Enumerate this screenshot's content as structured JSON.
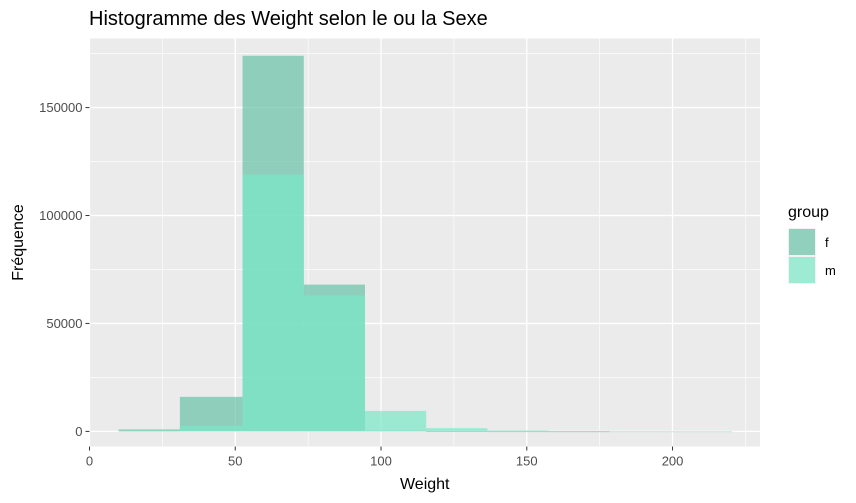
{
  "chart_data": {
    "type": "bar",
    "subtype": "histogram-overlay",
    "title": "Histogramme des  Weight selon le ou la  Sexe",
    "xlabel": "Weight",
    "ylabel": "Fréquence",
    "xlim": [
      0,
      230
    ],
    "ylim": [
      -7000,
      182000
    ],
    "x_ticks": [
      0,
      50,
      100,
      150,
      200
    ],
    "y_ticks": [
      0,
      50000,
      100000,
      150000
    ],
    "y_tick_labels": [
      "0",
      "50000",
      "100000",
      "150000"
    ],
    "grid": true,
    "legend": {
      "title": "group",
      "position": "right",
      "entries": [
        "f",
        "m"
      ]
    },
    "bins": [
      [
        10,
        31
      ],
      [
        31,
        52.5
      ],
      [
        52.5,
        73.5
      ],
      [
        73.5,
        94.5
      ],
      [
        94.5,
        115.5
      ],
      [
        115.5,
        136.5
      ],
      [
        136.5,
        157.5
      ],
      [
        157.5,
        178.5
      ],
      [
        178.5,
        199.5
      ],
      [
        199.5,
        220.5
      ]
    ],
    "series": [
      {
        "name": "f",
        "color": "#66c2a5",
        "values": [
          900,
          16000,
          174000,
          68000,
          400,
          100,
          50,
          20,
          0,
          0
        ]
      },
      {
        "name": "m",
        "color": "#7ae8c8",
        "values": [
          300,
          2500,
          119000,
          63000,
          9500,
          1500,
          400,
          150,
          50,
          20
        ]
      }
    ]
  }
}
